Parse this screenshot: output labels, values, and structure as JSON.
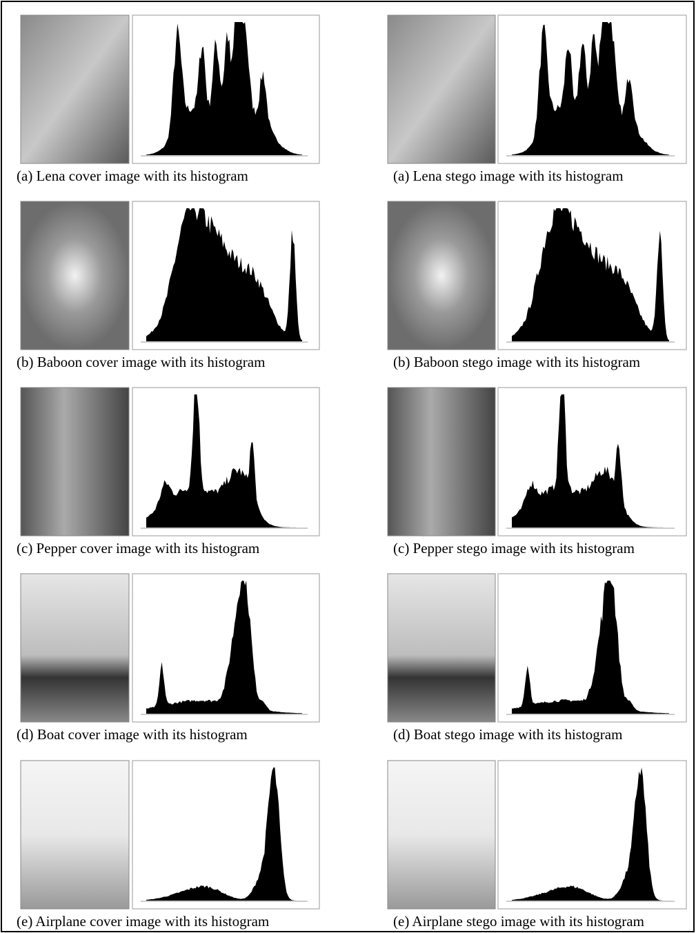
{
  "rows": [
    {
      "cover": "(a)  Lena cover image with its histogram",
      "stego": "(a)  Lena stego image with its histogram"
    },
    {
      "cover": "(b) Baboon cover image with its histogram",
      "stego": "(b)  Baboon stego image with its histogram"
    },
    {
      "cover": "(c) Pepper cover image with its histogram",
      "stego": "(c) Pepper stego image with its histogram"
    },
    {
      "cover": "(d) Boat cover image with its histogram",
      "stego": "(d)  Boat stego image with its histogram"
    },
    {
      "cover": "(e) Airplane cover image with its histogram",
      "stego": "(e)  Airplane stego image with its histogram"
    }
  ]
}
